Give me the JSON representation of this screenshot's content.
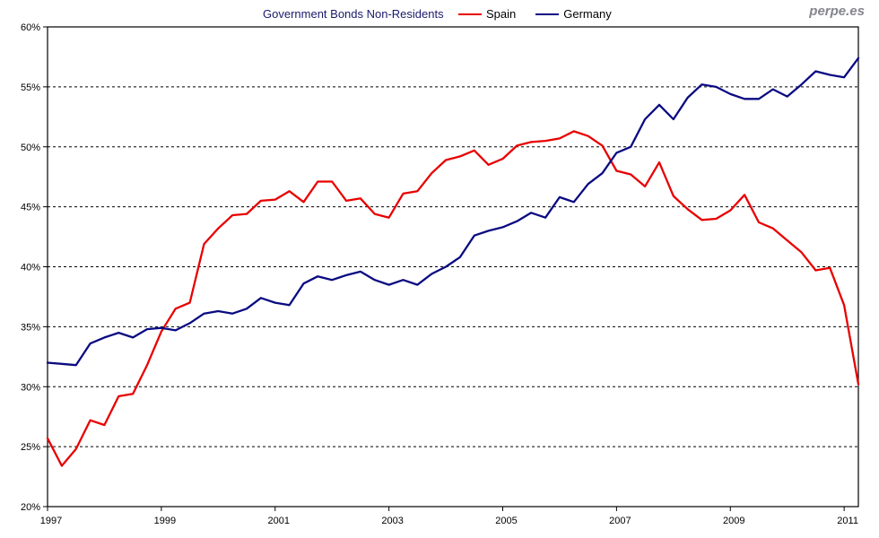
{
  "header": {
    "title": "Government Bonds Non-Residents",
    "watermark": "perpe.es"
  },
  "chart_data": {
    "type": "line",
    "title": "Government Bonds Non-Residents",
    "x_start": 1997.0,
    "x_step_years": 0.25,
    "x_tick_labels": [
      "1997",
      "1999",
      "2001",
      "2003",
      "2005",
      "2007",
      "2009",
      "2011"
    ],
    "y_ticks": [
      "20%",
      "25%",
      "30%",
      "35%",
      "40%",
      "45%",
      "50%",
      "55%",
      "60%"
    ],
    "ylim": [
      20,
      60
    ],
    "grid": "horizontal-dashed",
    "legend_position": "top",
    "series": [
      {
        "name": "Spain",
        "color": "#e80000",
        "values": [
          25.7,
          23.4,
          24.8,
          27.2,
          26.8,
          29.2,
          29.4,
          31.8,
          34.6,
          36.5,
          37.0,
          41.9,
          43.2,
          44.3,
          44.4,
          45.5,
          45.6,
          46.3,
          45.4,
          47.1,
          47.1,
          45.5,
          45.7,
          44.4,
          44.1,
          46.1,
          46.3,
          47.8,
          48.9,
          49.2,
          49.7,
          48.5,
          49.0,
          50.1,
          50.4,
          50.5,
          50.7,
          51.3,
          50.9,
          50.1,
          48.0,
          47.7,
          46.7,
          48.7,
          45.9,
          44.8,
          43.9,
          44.0,
          44.7,
          46.0,
          43.7,
          43.2,
          42.2,
          41.2,
          39.7,
          39.9,
          36.8,
          30.2
        ]
      },
      {
        "name": "Germany",
        "color": "#0a0a82",
        "values": [
          32.0,
          31.9,
          31.8,
          33.6,
          34.1,
          34.5,
          34.1,
          34.8,
          34.9,
          34.7,
          35.3,
          36.1,
          36.3,
          36.1,
          36.5,
          37.4,
          37.0,
          36.8,
          38.6,
          39.2,
          38.9,
          39.3,
          39.6,
          38.9,
          38.5,
          38.9,
          38.5,
          39.4,
          40.0,
          40.8,
          42.6,
          43.0,
          43.3,
          43.8,
          44.5,
          44.1,
          45.8,
          45.4,
          46.9,
          47.8,
          49.5,
          50.0,
          52.3,
          53.5,
          52.3,
          54.1,
          55.2,
          55.0,
          54.4,
          54.0,
          54.0,
          54.8,
          54.2,
          55.2,
          56.3,
          56.0,
          55.8,
          57.4
        ]
      }
    ]
  }
}
